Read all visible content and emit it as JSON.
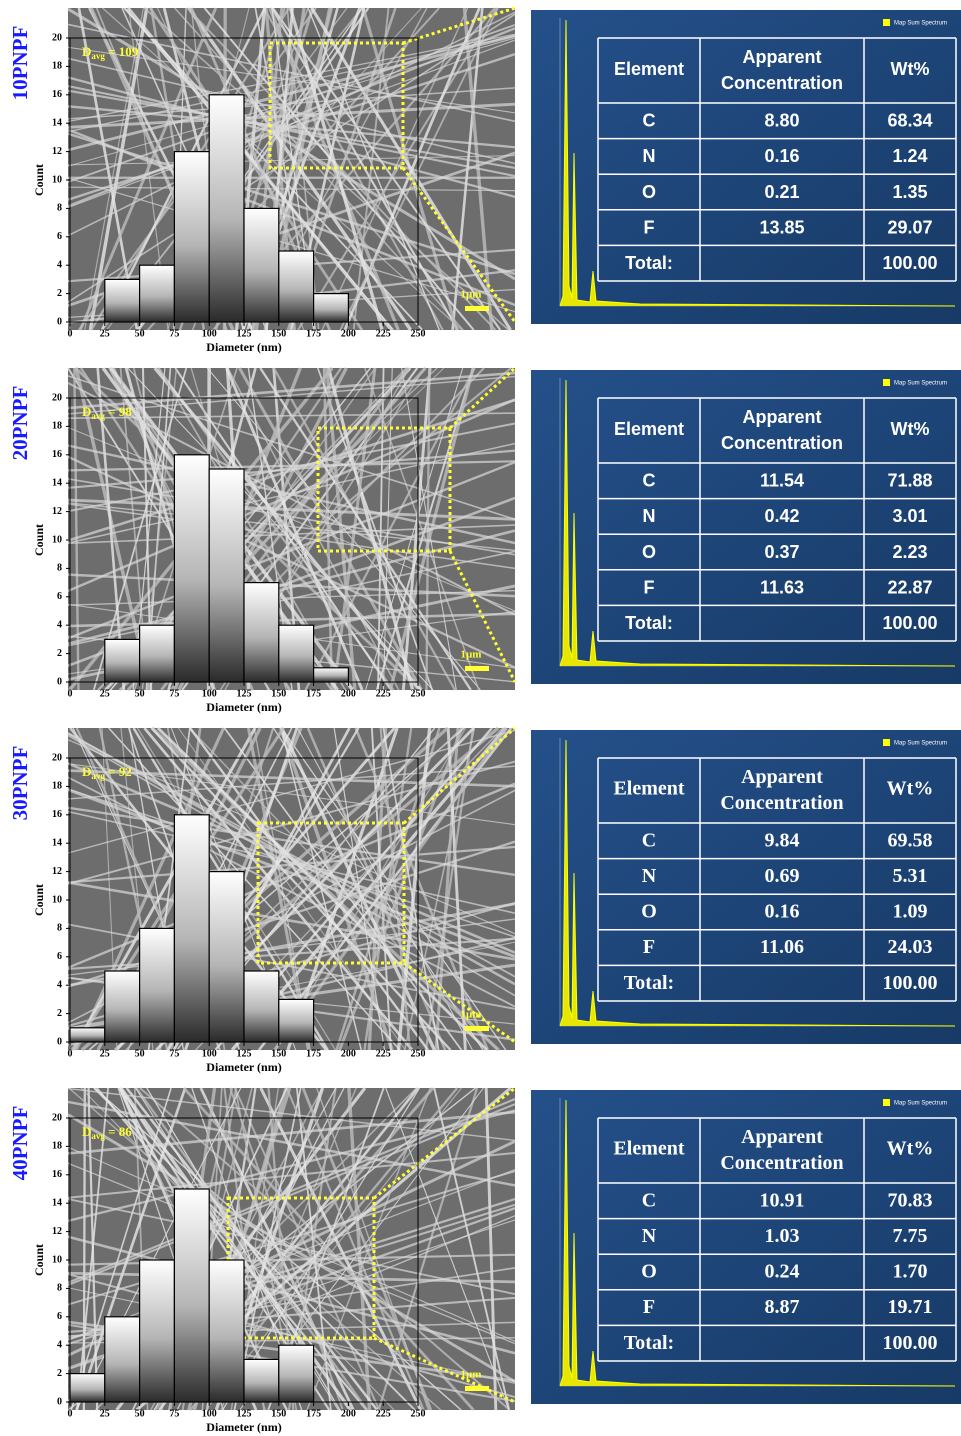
{
  "chart_data": [
    {
      "type": "histogram",
      "panel": "10PNPF",
      "x_label": "Diameter (nm)",
      "y_label": "Count",
      "annotation": {
        "main": "D",
        "sub": "avg",
        "rest": " = 109"
      },
      "scale_bar": "1μm",
      "bins": [
        0,
        25,
        50,
        75,
        100,
        125,
        150,
        175,
        200,
        225,
        250
      ],
      "counts": [
        0,
        3,
        4,
        12,
        16,
        8,
        5,
        2,
        0,
        0
      ],
      "xlim": [
        0,
        250
      ],
      "ylim": [
        0,
        20
      ],
      "xticks": [
        0,
        25,
        50,
        75,
        100,
        125,
        150,
        175,
        200,
        225,
        250
      ],
      "yticks": [
        0,
        2,
        4,
        6,
        8,
        10,
        12,
        14,
        16,
        18,
        20
      ]
    },
    {
      "type": "histogram",
      "panel": "20PNPF",
      "x_label": "Diameter (nm)",
      "y_label": "Count",
      "annotation": {
        "main": "D",
        "sub": "avg",
        "rest": " = 98"
      },
      "scale_bar": "1μm",
      "bins": [
        0,
        25,
        50,
        75,
        100,
        125,
        150,
        175,
        200,
        225,
        250
      ],
      "counts": [
        0,
        3,
        4,
        16,
        15,
        7,
        4,
        1,
        0,
        0
      ],
      "xlim": [
        0,
        250
      ],
      "ylim": [
        0,
        20
      ],
      "xticks": [
        0,
        25,
        50,
        75,
        100,
        125,
        150,
        175,
        200,
        225,
        250
      ],
      "yticks": [
        0,
        2,
        4,
        6,
        8,
        10,
        12,
        14,
        16,
        18,
        20
      ]
    },
    {
      "type": "histogram",
      "panel": "30PNPF",
      "x_label": "Diameter (nm)",
      "y_label": "Count",
      "annotation": {
        "main": "D",
        "sub": "avg",
        "rest": " = 92"
      },
      "scale_bar": "1μm",
      "bins": [
        0,
        25,
        50,
        75,
        100,
        125,
        150,
        175,
        200,
        225,
        250
      ],
      "counts": [
        1,
        5,
        8,
        16,
        12,
        5,
        3,
        0,
        0,
        0
      ],
      "xlim": [
        0,
        250
      ],
      "ylim": [
        0,
        20
      ],
      "xticks": [
        0,
        25,
        50,
        75,
        100,
        125,
        150,
        175,
        200,
        225,
        250
      ],
      "yticks": [
        0,
        2,
        4,
        6,
        8,
        10,
        12,
        14,
        16,
        18,
        20
      ]
    },
    {
      "type": "histogram",
      "panel": "40PNPF",
      "x_label": "Diameter (nm)",
      "y_label": "Count",
      "annotation": {
        "main": "D",
        "sub": "avg",
        "rest": " = 86"
      },
      "scale_bar": "1μm",
      "bins": [
        0,
        25,
        50,
        75,
        100,
        125,
        150,
        175,
        200,
        225,
        250
      ],
      "counts": [
        2,
        6,
        10,
        15,
        10,
        3,
        4,
        0,
        0,
        0
      ],
      "xlim": [
        0,
        250
      ],
      "ylim": [
        0,
        20
      ],
      "xticks": [
        0,
        25,
        50,
        75,
        100,
        125,
        150,
        175,
        200,
        225,
        250
      ],
      "yticks": [
        0,
        2,
        4,
        6,
        8,
        10,
        12,
        14,
        16,
        18,
        20
      ]
    }
  ],
  "tables": [
    {
      "legend": "Map Sum Spectrum",
      "header": [
        "Element",
        "Apparent Concentration",
        "Wt%"
      ],
      "rows": [
        [
          "C",
          "8.80",
          "68.34"
        ],
        [
          "N",
          "0.16",
          "1.24"
        ],
        [
          "O",
          "0.21",
          "1.35"
        ],
        [
          "F",
          "13.85",
          "29.07"
        ]
      ],
      "total": {
        "label": "Total:",
        "value": "100.00"
      }
    },
    {
      "legend": "Map Sum Spectrum",
      "header": [
        "Element",
        "Apparent Concentration",
        "Wt%"
      ],
      "rows": [
        [
          "C",
          "11.54",
          "71.88"
        ],
        [
          "N",
          "0.42",
          "3.01"
        ],
        [
          "O",
          "0.37",
          "2.23"
        ],
        [
          "F",
          "11.63",
          "22.87"
        ]
      ],
      "total": {
        "label": "Total:",
        "value": "100.00"
      }
    },
    {
      "legend": "Map Sum Spectrum",
      "header": [
        "Element",
        "Apparent Concentration",
        "Wt%"
      ],
      "rows": [
        [
          "C",
          "9.84",
          "69.58"
        ],
        [
          "N",
          "0.69",
          "5.31"
        ],
        [
          "O",
          "0.16",
          "1.09"
        ],
        [
          "F",
          "11.06",
          "24.03"
        ]
      ],
      "total": {
        "label": "Total:",
        "value": "100.00"
      }
    },
    {
      "legend": "Map Sum Spectrum",
      "header": [
        "Element",
        "Apparent Concentration",
        "Wt%"
      ],
      "rows": [
        [
          "C",
          "10.91",
          "70.83"
        ],
        [
          "N",
          "1.03",
          "7.75"
        ],
        [
          "O",
          "0.24",
          "1.70"
        ],
        [
          "F",
          "8.87",
          "19.71"
        ]
      ],
      "total": {
        "label": "Total:",
        "value": "100.00"
      }
    }
  ]
}
